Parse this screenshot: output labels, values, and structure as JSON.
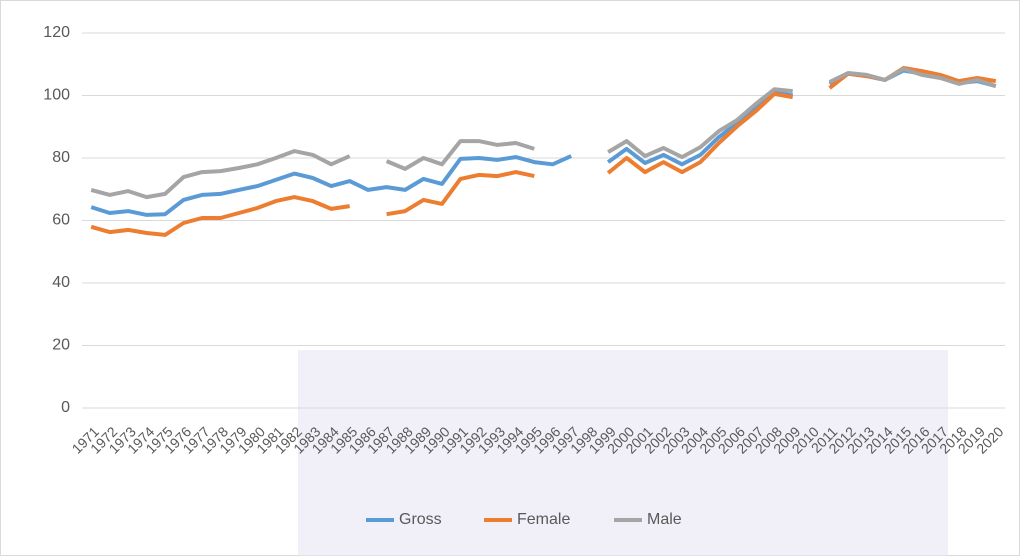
{
  "chart_data": {
    "type": "line",
    "categories": [
      "1971",
      "1972",
      "1973",
      "1974",
      "1975",
      "1976",
      "1977",
      "1978",
      "1979",
      "1980",
      "1981",
      "1982",
      "1983",
      "1984",
      "1985",
      "1986",
      "1987",
      "1988",
      "1989",
      "1990",
      "1991",
      "1992",
      "1993",
      "1994",
      "1995",
      "1996",
      "1997",
      "1998",
      "1999",
      "2000",
      "2001",
      "2002",
      "2003",
      "2004",
      "2005",
      "2006",
      "2007",
      "2008",
      "2009",
      "2010",
      "2011",
      "2012",
      "2013",
      "2014",
      "2015",
      "2016",
      "2017",
      "2018",
      "2019",
      "2020"
    ],
    "series": [
      {
        "name": "Gross",
        "color": "#5b9bd5",
        "values": [
          64.3,
          62.4,
          63,
          61.8,
          62,
          66.6,
          68.2,
          68.5,
          69.8,
          71,
          73,
          75,
          73.6,
          71,
          72.6,
          69.8,
          70.7,
          69.8,
          73.3,
          71.7,
          79.7,
          80,
          79.4,
          80.3,
          78.7,
          78,
          80.6,
          null,
          78.7,
          82.9,
          78.4,
          81,
          78,
          81,
          86.7,
          91.2,
          96,
          101,
          100,
          null,
          103.7,
          107,
          106.2,
          105,
          108,
          107,
          106,
          104,
          104.6,
          103
        ]
      },
      {
        "name": "Female",
        "color": "#ed7d31",
        "values": [
          58,
          56.3,
          57,
          56,
          55.4,
          59.2,
          60.8,
          60.8,
          62.4,
          64,
          66.2,
          67.5,
          66.2,
          63.7,
          64.6,
          null,
          62,
          63,
          66.6,
          65.3,
          73.3,
          74.6,
          74.2,
          75.5,
          74.2,
          null,
          null,
          null,
          75.2,
          80,
          75.5,
          78.7,
          75.5,
          78.7,
          84.8,
          90.2,
          95,
          100.5,
          99.5,
          null,
          102.4,
          107,
          106.2,
          105,
          108.8,
          107.8,
          106.6,
          104.6,
          105.6,
          104.6
        ]
      },
      {
        "name": "Male",
        "color": "#a5a5a5",
        "values": [
          69.8,
          68.2,
          69.4,
          67.5,
          68.5,
          73.9,
          75.5,
          75.8,
          76.8,
          78,
          80,
          82.2,
          81,
          78,
          80.6,
          null,
          79,
          76.5,
          80,
          78,
          85.4,
          85.4,
          84.2,
          84.8,
          82.9,
          null,
          null,
          null,
          81.9,
          85.4,
          80.6,
          83.2,
          80.3,
          83.5,
          88.6,
          92.2,
          97.3,
          102,
          101.4,
          null,
          104.3,
          107.2,
          106.6,
          105,
          108.5,
          106.6,
          105.6,
          103.7,
          105,
          103
        ]
      }
    ],
    "ylim": [
      0,
      120
    ],
    "yticks": [
      0,
      20,
      40,
      60,
      80,
      100,
      120
    ],
    "grid": true,
    "legend": "bottom"
  }
}
